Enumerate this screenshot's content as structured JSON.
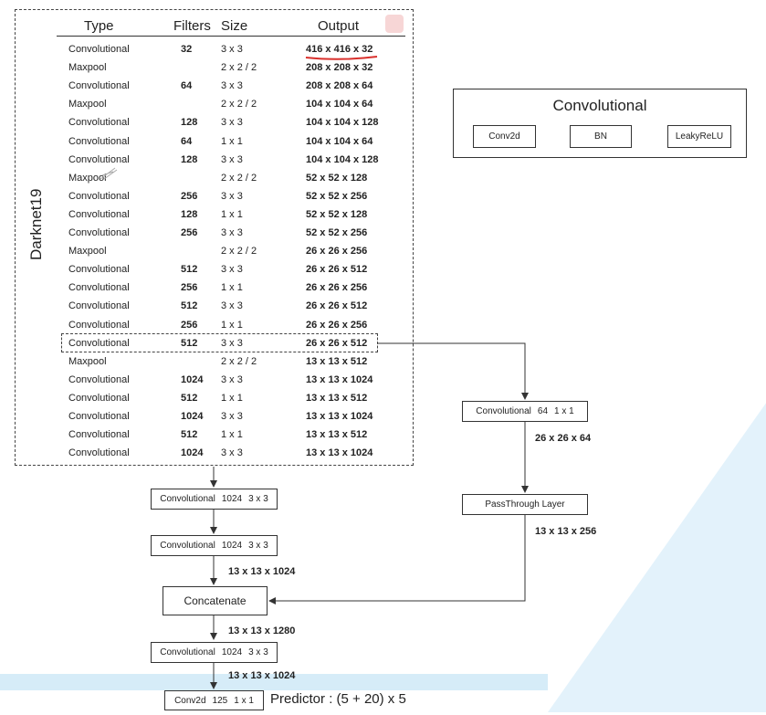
{
  "table": {
    "headers": {
      "type": "Type",
      "filters": "Filters",
      "size": "Size",
      "output": "Output"
    },
    "side_title": "Darknet19",
    "rows": [
      {
        "type": "Convolutional",
        "filters": "32",
        "size": "3 x 3",
        "output": "416 x 416 x 32"
      },
      {
        "type": "Maxpool",
        "filters": "",
        "size": "2 x 2 / 2",
        "output": "208 x 208 x 32"
      },
      {
        "type": "Convolutional",
        "filters": "64",
        "size": "3 x 3",
        "output": "208 x 208 x 64"
      },
      {
        "type": "Maxpool",
        "filters": "",
        "size": "2 x 2 / 2",
        "output": "104 x 104 x 64"
      },
      {
        "type": "Convolutional",
        "filters": "128",
        "size": "3 x 3",
        "output": "104 x 104 x 128"
      },
      {
        "type": "Convolutional",
        "filters": "64",
        "size": "1 x 1",
        "output": "104 x 104 x 64"
      },
      {
        "type": "Convolutional",
        "filters": "128",
        "size": "3 x 3",
        "output": "104 x 104 x 128"
      },
      {
        "type": "Maxpool",
        "filters": "",
        "size": "2 x 2 / 2",
        "output": "52 x 52 x 128"
      },
      {
        "type": "Convolutional",
        "filters": "256",
        "size": "3 x 3",
        "output": "52 x 52 x 256"
      },
      {
        "type": "Convolutional",
        "filters": "128",
        "size": "1 x 1",
        "output": "52 x 52 x 128"
      },
      {
        "type": "Convolutional",
        "filters": "256",
        "size": "3 x 3",
        "output": "52 x 52 x 256"
      },
      {
        "type": "Maxpool",
        "filters": "",
        "size": "2 x 2 / 2",
        "output": "26 x 26 x 256"
      },
      {
        "type": "Convolutional",
        "filters": "512",
        "size": "3 x 3",
        "output": "26 x 26 x 512"
      },
      {
        "type": "Convolutional",
        "filters": "256",
        "size": "1 x 1",
        "output": "26 x 26 x 256"
      },
      {
        "type": "Convolutional",
        "filters": "512",
        "size": "3 x 3",
        "output": "26 x 26 x 512"
      },
      {
        "type": "Convolutional",
        "filters": "256",
        "size": "1 x 1",
        "output": "26 x 26 x 256"
      },
      {
        "type": "Convolutional",
        "filters": "512",
        "size": "3 x 3",
        "output": "26 x 26 x 512"
      },
      {
        "type": "Maxpool",
        "filters": "",
        "size": "2 x 2 / 2",
        "output": "13 x 13 x 512"
      },
      {
        "type": "Convolutional",
        "filters": "1024",
        "size": "3 x 3",
        "output": "13 x 13 x 1024"
      },
      {
        "type": "Convolutional",
        "filters": "512",
        "size": "1 x 1",
        "output": "13 x 13 x 512"
      },
      {
        "type": "Convolutional",
        "filters": "1024",
        "size": "3 x 3",
        "output": "13 x 13 x 1024"
      },
      {
        "type": "Convolutional",
        "filters": "512",
        "size": "1 x 1",
        "output": "13 x 13 x 512"
      },
      {
        "type": "Convolutional",
        "filters": "1024",
        "size": "3 x 3",
        "output": "13 x 13 x 1024"
      }
    ]
  },
  "legend": {
    "title": "Convolutional",
    "conv2d": "Conv2d",
    "bn": "BN",
    "leaky": "LeakyReLU"
  },
  "branch": {
    "conv": {
      "name": "Convolutional",
      "filters": "64",
      "size": "1 x 1"
    },
    "dim1": "26 x 26 x 64",
    "passthrough": "PassThrough Layer",
    "dim2": "13 x 13 x 256"
  },
  "main_flow": {
    "conv1": {
      "name": "Convolutional",
      "filters": "1024",
      "size": "3 x 3"
    },
    "conv2": {
      "name": "Convolutional",
      "filters": "1024",
      "size": "3 x 3"
    },
    "dim1": "13 x 13 x 1024",
    "concat": "Concatenate",
    "dim2": "13 x 13 x 1280",
    "conv3": {
      "name": "Convolutional",
      "filters": "1024",
      "size": "3 x 3"
    },
    "dim3": "13 x 13 x 1024",
    "final": {
      "name": "Conv2d",
      "filters": "125",
      "size": "1 x 1"
    },
    "predictor": "Predictor : (5 + 20) x 5"
  },
  "colors": {
    "background_accent": "#d9eef9",
    "underline": "#d9302c"
  }
}
